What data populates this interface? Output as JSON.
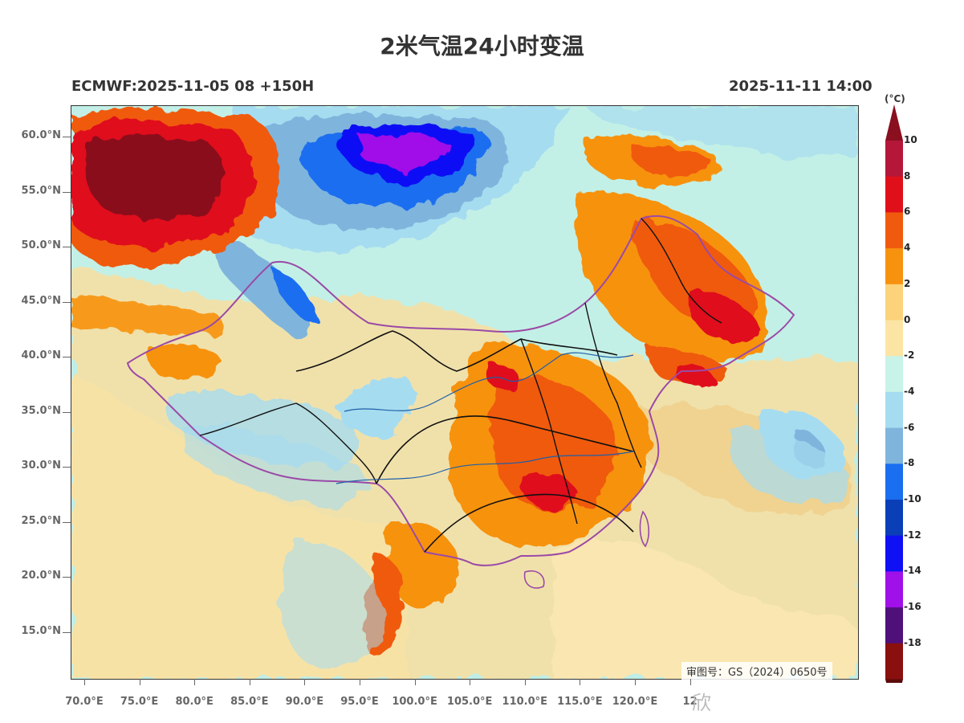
{
  "title": "2米气温24小时变温",
  "model_run": "ECMWF:2025-11-05 08 +150H",
  "valid_time": "2025-11-11 14:00",
  "unit": "(°C)",
  "approval_number": "审图号：GS（2024）0650号",
  "watermark": "欣",
  "lat_labels": [
    "60.0°N",
    "55.0°N",
    "50.0°N",
    "45.0°N",
    "40.0°N",
    "35.0°N",
    "30.0°N",
    "25.0°N",
    "20.0°N",
    "15.0°N"
  ],
  "lon_labels": [
    "70.0°E",
    "75.0°E",
    "80.0°E",
    "85.0°E",
    "90.0°E",
    "95.0°E",
    "100.0°E",
    "105.0°E",
    "110.0°E",
    "115.0°E",
    "120.0°E",
    "12"
  ],
  "colorbar": {
    "labels": [
      "10",
      "8",
      "6",
      "4",
      "2",
      "0",
      "-2",
      "-4",
      "-6",
      "-8",
      "-10",
      "-12",
      "-14",
      "-16",
      "-18"
    ],
    "colors": [
      "#b5173a",
      "#e0101a",
      "#f05a0e",
      "#f7920f",
      "#fcd27a",
      "#fbe4a4",
      "#c8f3e8",
      "#a6dcf0",
      "#7fb5dc",
      "#1a6ef0",
      "#0a3fb8",
      "#1010f5",
      "#a010e8",
      "#50107a",
      "#8a0f0f"
    ],
    "top_cap_color": "#8a0f1f",
    "bottom_cap_color": "#5a0a0a"
  }
}
